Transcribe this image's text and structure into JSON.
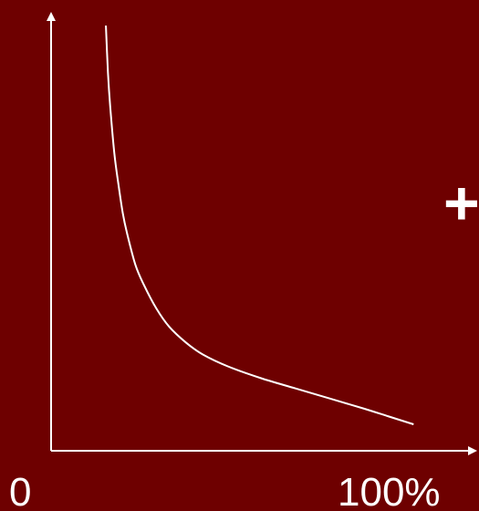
{
  "colors": {
    "background": "#6e0000",
    "axis": "#ffffff",
    "curve": "#ffffff",
    "text": "#ffffff"
  },
  "annotation": "+",
  "chart_data": {
    "type": "line",
    "title": "",
    "xlabel": "",
    "ylabel": "",
    "grid": false,
    "x_tick_labels": [
      "0",
      "100%"
    ],
    "x_range": [
      0,
      100
    ],
    "y_range": [
      0,
      100
    ],
    "series": [
      {
        "x": [
          13,
          13.5,
          14,
          15,
          16,
          17,
          18,
          20,
          22,
          25,
          28,
          32,
          36,
          42,
          50,
          58,
          66,
          74,
          80,
          86
        ],
        "y": [
          100,
          88,
          80,
          68,
          60,
          53,
          48,
          40,
          35,
          29,
          24.5,
          20.5,
          17.5,
          14.5,
          11.5,
          9,
          6.5,
          4,
          2,
          0
        ]
      }
    ]
  }
}
